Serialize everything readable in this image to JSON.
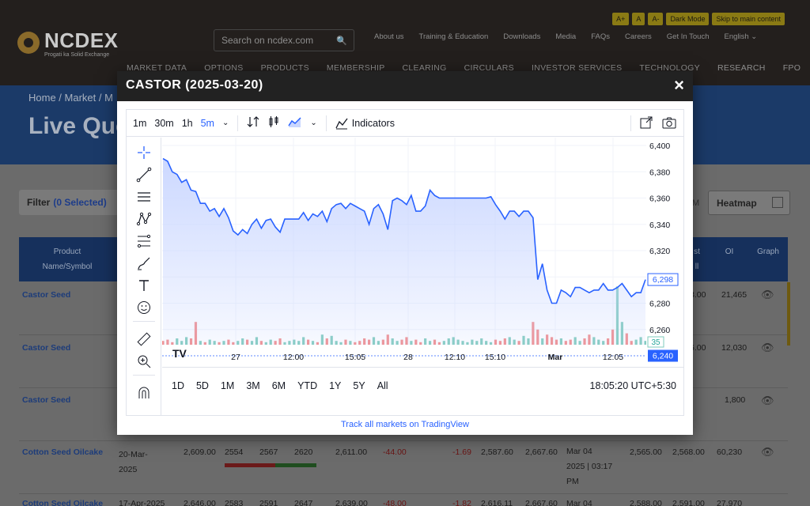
{
  "header": {
    "logo_name": "NCDEX",
    "logo_tagline": "Progati ka Solid Exchange",
    "util_buttons": [
      "A+",
      "A",
      "A-",
      "Dark Mode",
      "Skip to main content"
    ],
    "search_placeholder": "Search on ncdex.com",
    "top_links": [
      "About us",
      "Training & Education",
      "Downloads",
      "Media",
      "FAQs",
      "Careers",
      "Get In Touch",
      "English"
    ],
    "main_nav": [
      "MARKET DATA",
      "OPTIONS",
      "PRODUCTS",
      "MEMBERSHIP",
      "CLEARING",
      "CIRCULARS",
      "INVESTOR SERVICES",
      "TECHNOLOGY",
      "RESEARCH",
      "FPO"
    ]
  },
  "hero": {
    "breadcrumb": "Home / Market / M",
    "title": "Live Quo"
  },
  "filter": {
    "label": "Filter",
    "count": "(0 Selected)"
  },
  "heatmap_label": "Heatmap",
  "m_fragment": "M",
  "table": {
    "headers": {
      "product": [
        "Product",
        "Name/Symbol"
      ],
      "last": [
        "st",
        "ll"
      ],
      "oi": "OI",
      "graph": "Graph"
    },
    "rows": [
      {
        "symbol": "Castor Seed",
        "c1": "",
        "c2": "",
        "c3": "",
        "c4": "",
        "c5": "",
        "c6": "",
        "c7": "",
        "c8": "",
        "c9": "",
        "c10": "",
        "last": "8.00",
        "oi": "21,465"
      },
      {
        "symbol": "Castor Seed",
        "c1": "",
        "c2": "",
        "c3": "",
        "c4": "",
        "c5": "",
        "c6": "",
        "c7": "",
        "c8": "",
        "c9": "",
        "c10": "",
        "last": "6.00",
        "oi": "12,030"
      },
      {
        "symbol": "Castor Seed",
        "c1": "",
        "c2": "",
        "c3": "",
        "c4": "",
        "c5": "",
        "c6": "",
        "c7": "",
        "c8": "",
        "c9": "",
        "c10": "",
        "last": "",
        "oi": "1,800"
      },
      {
        "symbol": "Cotton Seed Oilcake",
        "expiry": [
          "20-Mar-",
          "2025"
        ],
        "open": "2,609.00",
        "low": "2554",
        "mid": "2567",
        "high": "2620",
        "prev": "2,611.00",
        "chg": "-44.00",
        "chgp": "-1.69",
        "v1": "2,587.60",
        "v2": "2,667.60",
        "date": [
          "Mar 04",
          "2025 | 03:17",
          "PM"
        ],
        "v3": "2,565.00",
        "last": "2,568.00",
        "oi": "60,230"
      },
      {
        "symbol": "Cotton Seed Oilcake",
        "expiry": [
          "17-Apr-2025"
        ],
        "open": "2,646.00",
        "low": "2583",
        "mid": "2591",
        "high": "2647",
        "prev": "2,639.00",
        "chg": "-48.00",
        "chgp": "-1.82",
        "v1": "2,616.11",
        "v2": "2,667.60",
        "date": [
          "Mar 04"
        ],
        "v3": "2,588.00",
        "last": "2,591.00",
        "oi": "27,970"
      }
    ]
  },
  "modal": {
    "title": "CASTOR (2025-03-20)",
    "close": "×",
    "toolbar": {
      "intervals": [
        "1m",
        "30m",
        "1h",
        "5m"
      ],
      "active_interval": "5m",
      "indicators": "Indicators"
    },
    "ranges": [
      "1D",
      "5D",
      "1M",
      "3M",
      "6M",
      "YTD",
      "1Y",
      "5Y",
      "All"
    ],
    "time_display": "18:05:20 UTC+5:30",
    "footer_link": "Track all markets on TradingView"
  },
  "chart_data": {
    "type": "line",
    "ylim": [
      6230,
      6405
    ],
    "yticks": [
      6400,
      6380,
      6360,
      6340,
      6320,
      6300,
      6280,
      6260
    ],
    "y_tick_labels": [
      "6,400",
      "6,380",
      "6,360",
      "6,340",
      "6,320",
      "6,300",
      "6,280",
      "6,260"
    ],
    "x_tick_labels": [
      "27",
      "12:00",
      "15:05",
      "28",
      "12:10",
      "15:10",
      "Mar",
      "12:05"
    ],
    "last_price": 6298,
    "last_price_label": "6,298",
    "crosshair_price": 6240,
    "crosshair_label": "6,240",
    "volume_label": "35",
    "series": [
      {
        "values": [
          6390,
          6388,
          6380,
          6378,
          6372,
          6374,
          6366,
          6365,
          6356,
          6356,
          6350,
          6352,
          6346,
          6352,
          6345,
          6335,
          6332,
          6336,
          6333,
          6340,
          6344,
          6337,
          6343,
          6344,
          6338,
          6334,
          6344,
          6344,
          6344,
          6344,
          6349,
          6343,
          6348,
          6346,
          6350,
          6342,
          6352,
          6355,
          6356,
          6352,
          6356,
          6354,
          6352,
          6350,
          6340,
          6352,
          6355,
          6348,
          6336,
          6358,
          6360,
          6358,
          6355,
          6362,
          6350,
          6350,
          6354,
          6366,
          6362,
          6360,
          6360,
          6360,
          6360,
          6360,
          6360,
          6360,
          6360,
          6360,
          6360,
          6360,
          6361,
          6355,
          6350,
          6344,
          6350,
          6350,
          6346,
          6350,
          6350,
          6345,
          6298,
          6310,
          6290,
          6280,
          6280,
          6290,
          6288,
          6285,
          6292,
          6292,
          6290,
          6288,
          6290,
          6290,
          6295,
          6290,
          6290,
          6292,
          6295,
          6290,
          6285,
          6288,
          6288,
          6298
        ]
      }
    ],
    "volume": [
      3,
      4,
      2,
      5,
      3,
      6,
      5,
      18,
      3,
      2,
      4,
      3,
      2,
      3,
      4,
      2,
      3,
      5,
      4,
      3,
      6,
      3,
      2,
      4,
      3,
      5,
      2,
      3,
      4,
      3,
      6,
      4,
      3,
      2,
      8,
      5,
      7,
      3,
      2,
      4,
      3,
      2,
      3,
      5,
      4,
      6,
      3,
      4,
      8,
      5,
      3,
      4,
      6,
      3,
      4,
      2,
      5,
      3,
      4,
      2,
      3,
      5,
      6,
      4,
      3,
      2,
      4,
      3,
      5,
      3,
      2,
      4,
      3,
      5,
      6,
      4,
      3,
      7,
      5,
      18,
      12,
      5,
      8,
      6,
      4,
      5,
      3,
      4,
      6,
      3,
      5,
      8,
      6,
      4,
      3,
      5,
      12,
      46,
      18,
      9,
      3,
      4,
      6,
      3
    ],
    "volume_up": [
      0,
      0,
      0,
      1,
      1,
      1,
      0,
      0,
      1,
      0,
      1,
      1,
      0,
      1,
      0,
      0,
      1,
      1,
      0,
      1,
      1,
      0,
      1,
      1,
      0,
      0,
      1,
      1,
      1,
      1,
      1,
      0,
      1,
      0,
      1,
      0,
      1,
      1,
      1,
      0,
      1,
      0,
      0,
      0,
      0,
      1,
      1,
      0,
      0,
      1,
      1,
      0,
      0,
      1,
      0,
      0,
      1,
      1,
      0,
      0,
      1,
      1,
      1,
      1,
      1,
      1,
      1,
      1,
      1,
      1,
      1,
      0,
      0,
      0,
      1,
      1,
      0,
      1,
      1,
      0,
      0,
      1,
      0,
      0,
      0,
      1,
      0,
      0,
      1,
      1,
      0,
      0,
      1,
      1,
      1,
      0,
      0,
      1,
      1,
      0,
      0,
      1,
      1,
      1
    ],
    "grid": true,
    "colors": {
      "line": "#2962ff",
      "area_top": "#c9d6ff",
      "vol_up": "#7fcbbd",
      "vol_down": "#f28b8b"
    }
  },
  "colors": {
    "brand_gold": "#8a6a2a",
    "accent_blue": "#2962ff",
    "nav_dark": "#231f1d",
    "table_head": "#16305c",
    "negative": "#6a1414"
  },
  "icons": {
    "search": "search-icon",
    "close": "close-icon",
    "camera": "camera-icon",
    "share": "share-icon",
    "eye": "eye-icon",
    "heatmap": "grid-icon"
  }
}
